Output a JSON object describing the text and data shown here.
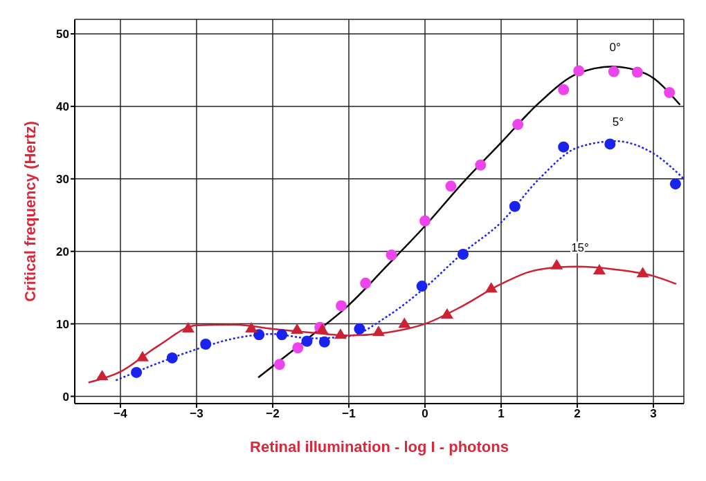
{
  "chart_data": {
    "type": "line",
    "xlabel": "Retinal illumination - log I - photons",
    "ylabel": "Critical frequency (Hertz)",
    "xlim": [
      -4.6,
      3.4
    ],
    "xticks": [
      -4,
      -3,
      -2,
      -1,
      0,
      1,
      2,
      3
    ],
    "ylim": [
      -1,
      52
    ],
    "yticks": [
      0,
      10,
      20,
      30,
      40,
      50
    ],
    "grid": true,
    "legend": false,
    "series": [
      {
        "type": "scatter",
        "marker": "circle",
        "color": "#ee44ee",
        "x": [
          -1.91,
          -1.67,
          -1.38,
          -1.1,
          -0.78,
          -0.44,
          0,
          0.34,
          0.73,
          1.22,
          1.82,
          2.02,
          2.48,
          2.79,
          3.21
        ],
        "values": [
          4.4,
          6.7,
          9.5,
          12.5,
          15.6,
          19.5,
          24.2,
          29.0,
          31.9,
          37.5,
          42.3,
          44.9,
          44.8,
          44.7,
          41.9
        ]
      },
      {
        "name": "0°",
        "marker": "none",
        "line_style": "solid",
        "color": "#000000",
        "x": [
          -2.19,
          -1.5,
          -1,
          -0.5,
          0,
          0.5,
          1,
          1.5,
          2,
          2.46,
          2.9,
          3.35
        ],
        "values": [
          2.6,
          8.3,
          12.6,
          18,
          23.5,
          29.5,
          35,
          40.5,
          44.5,
          45.5,
          44.5,
          40.2
        ]
      },
      {
        "type": "scatter",
        "marker": "circle",
        "color": "#1a22ee",
        "x": [
          -3.79,
          -3.32,
          -2.88,
          -2.18,
          -1.88,
          -1.55,
          -1.32,
          -0.86,
          -0.04,
          0.5,
          1.18,
          1.82,
          2.43,
          3.29
        ],
        "values": [
          3.3,
          5.3,
          7.2,
          8.5,
          8.5,
          7.6,
          7.5,
          9.3,
          15.2,
          19.6,
          26.2,
          34.4,
          34.8,
          29.3
        ]
      },
      {
        "name": "5°",
        "marker": "none",
        "line_style": "dotted",
        "color": "#1a22ee",
        "x": [
          -4.06,
          -3.5,
          -3,
          -2.5,
          -2,
          -1.5,
          -1,
          -0.5,
          0,
          0.5,
          1,
          1.5,
          2,
          2.5,
          3,
          3.4
        ],
        "values": [
          2.2,
          4.6,
          6.5,
          8,
          8.6,
          8,
          8.3,
          11,
          15,
          19.8,
          24,
          30,
          34.3,
          35.2,
          33.5,
          30
        ]
      },
      {
        "type": "scatter",
        "marker": "triangle",
        "color": "#cc2233",
        "x": [
          -4.24,
          -3.71,
          -3.11,
          -2.28,
          -1.68,
          -1.35,
          -1.11,
          -0.61,
          -0.27,
          0.29,
          0.87,
          1.73,
          2.29,
          2.86
        ],
        "values": [
          2.8,
          5.4,
          9.4,
          9.4,
          9.2,
          9.2,
          8.5,
          8.9,
          10.0,
          11.3,
          14.9,
          18.1,
          17.4,
          17.0
        ]
      },
      {
        "name": "15°",
        "marker": "none",
        "line_style": "solid",
        "color": "#cc2233",
        "x": [
          -4.42,
          -4,
          -3.5,
          -3,
          -2.5,
          -2,
          -1.5,
          -1,
          -0.5,
          0,
          0.5,
          1,
          1.5,
          2,
          2.5,
          3,
          3.3
        ],
        "values": [
          1.9,
          3.4,
          7,
          9.8,
          9.9,
          9.3,
          8.8,
          8.4,
          8.8,
          10,
          12.5,
          15.5,
          17.5,
          17.9,
          17.5,
          16.6,
          15.5
        ]
      }
    ]
  }
}
